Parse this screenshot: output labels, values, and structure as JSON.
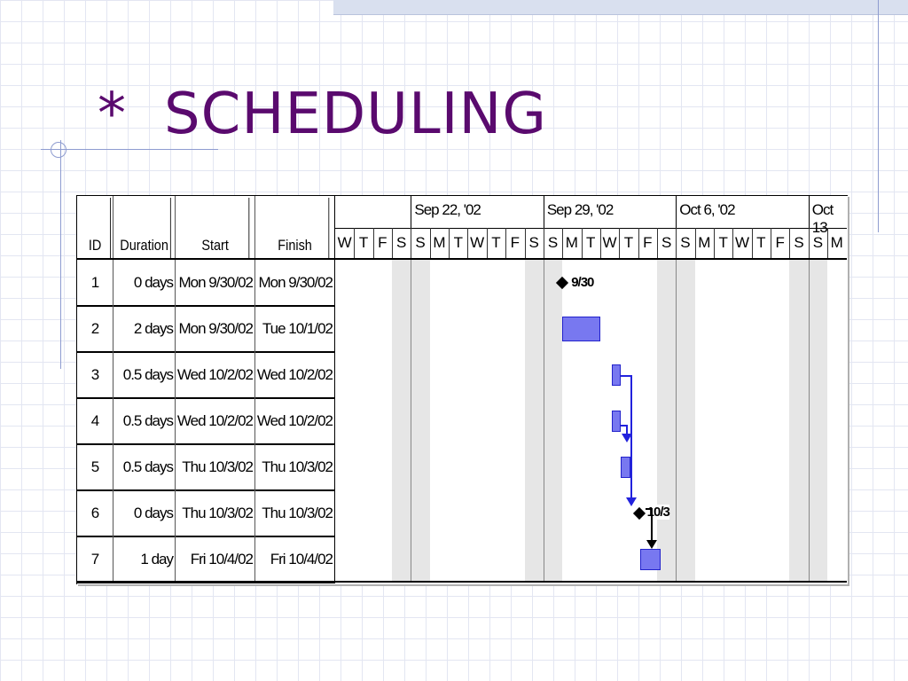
{
  "slide": {
    "title_star": "*",
    "title": "SCHEDULING"
  },
  "gantt": {
    "columns": {
      "id": "ID",
      "duration": "Duration",
      "start": "Start",
      "finish": "Finish"
    },
    "weeks": [
      "Sep 22, '02",
      "Sep 29, '02",
      "Oct 6, '02",
      "Oct 13"
    ],
    "days": [
      "W",
      "T",
      "F",
      "S",
      "S",
      "M",
      "T",
      "W",
      "T",
      "F",
      "S",
      "S",
      "M",
      "T",
      "W",
      "T",
      "F",
      "S",
      "S",
      "M",
      "T",
      "W",
      "T",
      "F",
      "S",
      "S",
      "M"
    ],
    "tasks": [
      {
        "id": "1",
        "duration": "0 days",
        "start": "Mon 9/30/02",
        "finish": "Mon 9/30/02"
      },
      {
        "id": "2",
        "duration": "2 days",
        "start": "Mon 9/30/02",
        "finish": "Tue 10/1/02"
      },
      {
        "id": "3",
        "duration": "0.5 days",
        "start": "Wed 10/2/02",
        "finish": "Wed 10/2/02"
      },
      {
        "id": "4",
        "duration": "0.5 days",
        "start": "Wed 10/2/02",
        "finish": "Wed 10/2/02"
      },
      {
        "id": "5",
        "duration": "0.5 days",
        "start": "Thu 10/3/02",
        "finish": "Thu 10/3/02"
      },
      {
        "id": "6",
        "duration": "0 days",
        "start": "Thu 10/3/02",
        "finish": "Thu 10/3/02"
      },
      {
        "id": "7",
        "duration": "1 day",
        "start": "Fri 10/4/02",
        "finish": "Fri 10/4/02"
      }
    ],
    "milestone_labels": [
      "9/30",
      "10/3"
    ],
    "colors": {
      "bar": "#7878f0",
      "bar_border": "#2222cc",
      "link": "#2222dd",
      "title": "#5a0a6e"
    }
  }
}
